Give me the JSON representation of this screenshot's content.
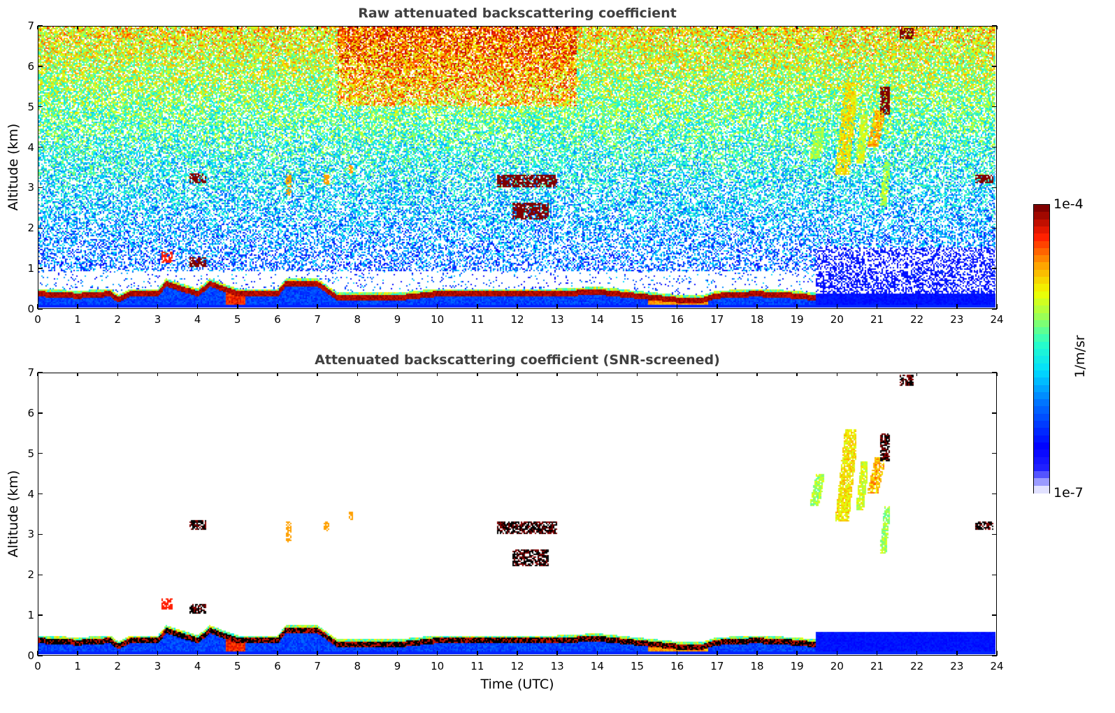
{
  "chart_data": [
    {
      "type": "heatmap",
      "id": "raw",
      "title": "Raw attenuated backscattering coefficient",
      "xlabel": "",
      "ylabel": "Altitude (km)",
      "xlim": [
        0,
        24
      ],
      "ylim": [
        0,
        7
      ],
      "xticks": [
        "0",
        "1",
        "2",
        "3",
        "4",
        "5",
        "6",
        "7",
        "8",
        "9",
        "10",
        "11",
        "12",
        "13",
        "14",
        "15",
        "16",
        "17",
        "18",
        "19",
        "20",
        "21",
        "22",
        "23",
        "24"
      ],
      "yticks": [
        "0",
        "1",
        "2",
        "3",
        "4",
        "5",
        "6",
        "7"
      ],
      "background": "noisy",
      "features": {
        "boundary_layer_top_km": [
          [
            0,
            0.35
          ],
          [
            1,
            0.3
          ],
          [
            1.8,
            0.35
          ],
          [
            2,
            0.2
          ],
          [
            2.3,
            0.35
          ],
          [
            3,
            0.35
          ],
          [
            3.2,
            0.6
          ],
          [
            4,
            0.35
          ],
          [
            4.3,
            0.6
          ],
          [
            5,
            0.35
          ],
          [
            6,
            0.35
          ],
          [
            6.2,
            0.6
          ],
          [
            7,
            0.6
          ],
          [
            7.5,
            0.25
          ],
          [
            9,
            0.25
          ],
          [
            10,
            0.35
          ],
          [
            13,
            0.35
          ],
          [
            14,
            0.4
          ],
          [
            15,
            0.3
          ],
          [
            16,
            0.2
          ],
          [
            16.7,
            0.2
          ],
          [
            17,
            0.3
          ],
          [
            18,
            0.35
          ],
          [
            19,
            0.3
          ],
          [
            19.5,
            0.25
          ]
        ],
        "clouds": [
          {
            "t0": 3.8,
            "t1": 4.2,
            "z0": 3.1,
            "z1": 3.35,
            "level": 1.0
          },
          {
            "t0": 3.1,
            "t1": 3.35,
            "z0": 1.1,
            "z1": 1.4,
            "level": 0.9
          },
          {
            "t0": 3.8,
            "t1": 4.2,
            "z0": 1.0,
            "z1": 1.25,
            "level": 1.0
          },
          {
            "t0": 6.2,
            "t1": 6.35,
            "z0": 2.8,
            "z1": 3.3,
            "level": 0.8
          },
          {
            "t0": 7.15,
            "t1": 7.3,
            "z0": 3.05,
            "z1": 3.3,
            "level": 0.8
          },
          {
            "t0": 7.8,
            "t1": 7.9,
            "z0": 3.35,
            "z1": 3.55,
            "level": 0.8
          },
          {
            "t0": 11.5,
            "t1": 13.0,
            "z0": 3.0,
            "z1": 3.3,
            "level": 1.0
          },
          {
            "t0": 11.9,
            "t1": 12.8,
            "z0": 2.2,
            "z1": 2.6,
            "level": 1.0
          },
          {
            "t0": 21.6,
            "t1": 21.95,
            "z0": 6.7,
            "z1": 6.95,
            "level": 1.0
          },
          {
            "t0": 21.1,
            "t1": 21.35,
            "z0": 4.8,
            "z1": 5.5,
            "level": 1.0
          },
          {
            "t0": 23.5,
            "t1": 23.95,
            "z0": 3.1,
            "z1": 3.3,
            "level": 1.0
          }
        ],
        "cirrus_streaks": [
          {
            "t0": 19.35,
            "t1": 19.7,
            "z0": 3.7,
            "z1": 4.5,
            "level": 0.65
          },
          {
            "t0": 20.0,
            "t1": 20.5,
            "z0": 3.3,
            "z1": 5.6,
            "level": 0.75
          },
          {
            "t0": 20.5,
            "t1": 20.8,
            "z0": 3.6,
            "z1": 4.8,
            "level": 0.7
          },
          {
            "t0": 20.8,
            "t1": 21.2,
            "z0": 4.0,
            "z1": 4.9,
            "level": 0.8
          },
          {
            "t0": 21.1,
            "t1": 21.35,
            "z0": 2.5,
            "z1": 3.7,
            "level": 0.65
          }
        ]
      }
    },
    {
      "type": "heatmap",
      "id": "screened",
      "title": "Attenuated backscattering coefficient (SNR-screened)",
      "xlabel": "Time (UTC)",
      "ylabel": "Altitude (km)",
      "xlim": [
        0,
        24
      ],
      "ylim": [
        0,
        7
      ],
      "xticks": [
        "0",
        "1",
        "2",
        "3",
        "4",
        "5",
        "6",
        "7",
        "8",
        "9",
        "10",
        "11",
        "12",
        "13",
        "14",
        "15",
        "16",
        "17",
        "18",
        "19",
        "20",
        "21",
        "22",
        "23",
        "24"
      ],
      "yticks": [
        "0",
        "1",
        "2",
        "3",
        "4",
        "5",
        "6",
        "7"
      ],
      "background": "screened"
    }
  ],
  "colorbar": {
    "label": "1/m/sr",
    "max_label": "1e-4",
    "min_label": "1e-7",
    "range": [
      1e-07,
      0.0001
    ],
    "scale": "log"
  }
}
